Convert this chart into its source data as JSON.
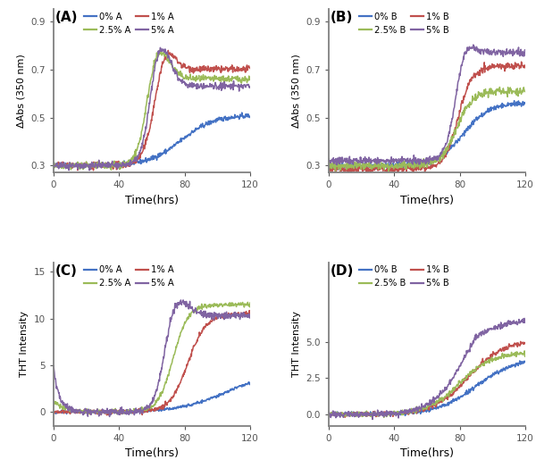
{
  "colors": {
    "blue": "#4472C4",
    "red": "#C0504D",
    "green": "#9BBB59",
    "purple": "#8064A2"
  },
  "panel_labels": [
    "(A)",
    "(B)",
    "(C)",
    "(D)"
  ],
  "legend_A": [
    "0% A",
    "1% A",
    "2.5% A",
    "5% A"
  ],
  "legend_B": [
    "0% B",
    "1% B",
    "2.5% B",
    "5% B"
  ],
  "ylabel_top": "ΔAbs (350 nm)",
  "ylabel_bottom": "THT Intensity",
  "xlabel": "Time(hrs)",
  "xlim": [
    0,
    120
  ],
  "ylim_AB": [
    0.27,
    0.95
  ],
  "yticks_AB": [
    0.3,
    0.5,
    0.7,
    0.9
  ],
  "ylim_C": [
    -1.5,
    16
  ],
  "yticks_C": [
    0,
    5,
    10,
    15
  ],
  "ylim_D": [
    -0.8,
    10.5
  ],
  "yticks_D": [
    0.0,
    2.5,
    5.0
  ]
}
